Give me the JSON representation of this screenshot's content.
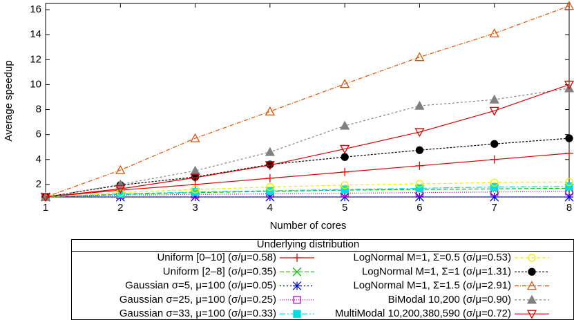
{
  "chart_data": {
    "type": "line",
    "x_label": "Number of cores",
    "y_label": "Average speedup",
    "x": [
      1,
      2,
      3,
      4,
      5,
      6,
      7,
      8
    ],
    "xlim": [
      1,
      8
    ],
    "xticks": [
      1,
      2,
      3,
      4,
      5,
      6,
      7,
      8
    ],
    "ylim": [
      1,
      16.5
    ],
    "yticks": [
      2,
      4,
      6,
      8,
      10,
      12,
      14,
      16
    ],
    "legend_title": "Underlying distribution",
    "legend_position": "below",
    "series": [
      {
        "name": "Uniform [0–10] (σ/μ=0.58)",
        "color": "#dd0000",
        "marker": "plus",
        "dash": "none",
        "values": [
          1,
          1.55,
          2.0,
          2.5,
          3.0,
          3.5,
          4.0,
          4.5
        ]
      },
      {
        "name": "Uniform [2–8] (σ/μ=0.35)",
        "color": "#00c000",
        "marker": "cross",
        "dash": "6,3",
        "values": [
          1,
          1.2,
          1.35,
          1.45,
          1.55,
          1.6,
          1.65,
          1.7
        ]
      },
      {
        "name": "Gaussian σ=5, μ=100 (σ/μ=0.05)",
        "color": "#0000ee",
        "marker": "star",
        "dash": "2,3",
        "values": [
          1,
          1,
          1,
          1,
          1,
          1,
          1,
          1
        ]
      },
      {
        "name": "Gaussian σ=25, μ=100 (σ/μ=0.25)",
        "color": "#c000c0",
        "marker": "square-open",
        "dash": "1,2",
        "values": [
          1,
          1.15,
          1.2,
          1.25,
          1.3,
          1.35,
          1.4,
          1.45
        ]
      },
      {
        "name": "Gaussian σ=33, μ=100 (σ/μ=0.33)",
        "color": "#00dddd",
        "marker": "square",
        "dash": "8,3,2,3",
        "values": [
          1,
          1.25,
          1.4,
          1.5,
          1.6,
          1.7,
          1.8,
          1.85
        ]
      },
      {
        "name": "LogNormal M=1, Σ=0.5 (σ/μ=0.53)",
        "color": "#eeee00",
        "marker": "circle-open",
        "dash": "5,3",
        "values": [
          1,
          1.35,
          1.6,
          1.8,
          1.95,
          2.05,
          2.15,
          2.2
        ]
      },
      {
        "name": "LogNormal M=1, Σ=1 (σ/μ=1.31)",
        "color": "#000000",
        "marker": "circle",
        "dash": "3,2",
        "values": [
          1,
          1.95,
          2.6,
          3.6,
          4.2,
          4.75,
          5.25,
          5.7
        ]
      },
      {
        "name": "LogNormal M=1, Σ=1.5 (σ/μ=2.91)",
        "color": "#e05000",
        "marker": "triangle-open",
        "dash": "6,2,1,2",
        "values": [
          1,
          3.15,
          5.7,
          7.85,
          10.05,
          12.2,
          14.1,
          16.3
        ]
      },
      {
        "name": "BiModal 10,200 (σ/μ=0.90)",
        "color": "#808080",
        "marker": "triangle",
        "dash": "3,3",
        "values": [
          1,
          2.0,
          3.1,
          4.6,
          6.7,
          8.3,
          8.8,
          9.7
        ]
      },
      {
        "name": "MultiModal 10,200,380,590 (σ/μ=0.72)",
        "color": "#dd0000",
        "marker": "triangle-down-open",
        "dash": "none",
        "values": [
          1,
          1.65,
          2.55,
          3.55,
          4.85,
          6.2,
          7.9,
          10.0
        ]
      }
    ]
  }
}
